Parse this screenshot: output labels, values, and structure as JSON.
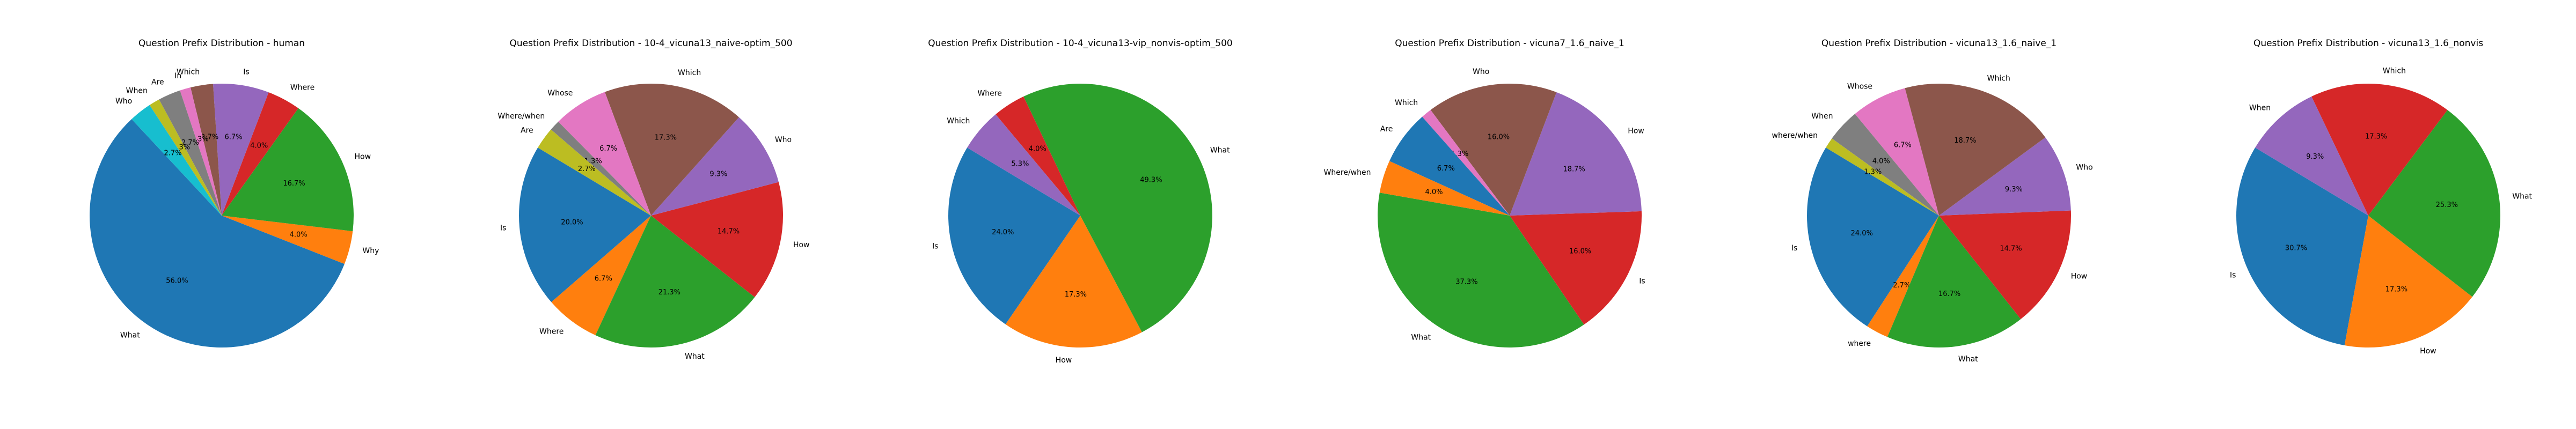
{
  "chart_data": [
    {
      "type": "pie",
      "title": "Question Prefix Distribution - human",
      "start_angle": 133,
      "slices": [
        {
          "label": "What",
          "value": 56.0,
          "pct_label": "56.0%",
          "color": "#1f77b4"
        },
        {
          "label": "Why",
          "value": 4.0,
          "pct_label": "4.0%",
          "color": "#ff7f0e"
        },
        {
          "label": "How",
          "value": 16.7,
          "pct_label": "16.7%",
          "color": "#2ca02c"
        },
        {
          "label": "Where",
          "value": 4.0,
          "pct_label": "4.0%",
          "color": "#d62728"
        },
        {
          "label": "Is",
          "value": 6.7,
          "pct_label": "6.7%",
          "color": "#9467bd"
        },
        {
          "label": "Which",
          "value": 2.7,
          "pct_label": "2.7%",
          "color": "#8c564b"
        },
        {
          "label": "In",
          "value": 1.3,
          "pct_label": "1.3%",
          "color": "#e377c2"
        },
        {
          "label": "Are",
          "value": 2.7,
          "pct_label": "2.7%",
          "color": "#7f7f7f"
        },
        {
          "label": "When",
          "value": 1.3,
          "pct_label": "1.3%",
          "color": "#bcbd22"
        },
        {
          "label": "Who",
          "value": 2.7,
          "pct_label": "2.7%",
          "color": "#17becf"
        }
      ]
    },
    {
      "type": "pie",
      "title": "Question Prefix Distribution - 10-4_vicuna13_naive-optim_500",
      "start_angle": 149,
      "slices": [
        {
          "label": "Is",
          "value": 20.0,
          "pct_label": "20.0%",
          "color": "#1f77b4"
        },
        {
          "label": "Where",
          "value": 6.7,
          "pct_label": "6.7%",
          "color": "#ff7f0e"
        },
        {
          "label": "What",
          "value": 21.3,
          "pct_label": "21.3%",
          "color": "#2ca02c"
        },
        {
          "label": "How",
          "value": 14.7,
          "pct_label": "14.7%",
          "color": "#d62728"
        },
        {
          "label": "Who",
          "value": 9.3,
          "pct_label": "9.3%",
          "color": "#9467bd"
        },
        {
          "label": "Which",
          "value": 17.3,
          "pct_label": "17.3%",
          "color": "#8c564b"
        },
        {
          "label": "Whose",
          "value": 6.7,
          "pct_label": "6.7%",
          "color": "#e377c2"
        },
        {
          "label": "Where/when",
          "value": 1.3,
          "pct_label": "1.3%",
          "color": "#7f7f7f"
        },
        {
          "label": "Are",
          "value": 2.7,
          "pct_label": "2.7%",
          "color": "#bcbd22"
        }
      ]
    },
    {
      "type": "pie",
      "title": "Question Prefix Distribution - 10-4_vicuna13-vip_nonvis-optim_500",
      "start_angle": 149,
      "slices": [
        {
          "label": "Is",
          "value": 24.0,
          "pct_label": "24.0%",
          "color": "#1f77b4"
        },
        {
          "label": "How",
          "value": 17.3,
          "pct_label": "17.3%",
          "color": "#ff7f0e"
        },
        {
          "label": "What",
          "value": 49.3,
          "pct_label": "49.3%",
          "color": "#2ca02c"
        },
        {
          "label": "Where",
          "value": 4.0,
          "pct_label": "4.0%",
          "color": "#d62728"
        },
        {
          "label": "Which",
          "value": 5.3,
          "pct_label": "5.3%",
          "color": "#9467bd"
        }
      ]
    },
    {
      "type": "pie",
      "title": "Question Prefix Distribution - vicuna7_1.6_naive_1",
      "start_angle": 170,
      "slices": [
        {
          "label": "What",
          "value": 37.3,
          "pct_label": "37.3%",
          "color": "#2ca02c"
        },
        {
          "label": "Is",
          "value": 16.0,
          "pct_label": "16.0%",
          "color": "#d62728"
        },
        {
          "label": "How",
          "value": 18.7,
          "pct_label": "18.7%",
          "color": "#9467bd"
        },
        {
          "label": "Who",
          "value": 16.0,
          "pct_label": "16.0%",
          "color": "#8c564b"
        },
        {
          "label": "Which",
          "value": 1.3,
          "pct_label": "1.3%",
          "color": "#e377c2"
        },
        {
          "label": "Are",
          "value": 6.7,
          "pct_label": "6.7%",
          "color": "#1f77b4"
        },
        {
          "label": "Where/when",
          "value": 4.0,
          "pct_label": "4.0%",
          "color": "#ff7f0e"
        }
      ]
    },
    {
      "type": "pie",
      "title": "Question Prefix Distribution - vicuna13_1.6_naive_1",
      "start_angle": 149,
      "slices": [
        {
          "label": "Is",
          "value": 24.0,
          "pct_label": "24.0%",
          "color": "#1f77b4"
        },
        {
          "label": "where",
          "value": 2.7,
          "pct_label": "2.7%",
          "color": "#ff7f0e"
        },
        {
          "label": "What",
          "value": 16.7,
          "pct_label": "16.7%",
          "color": "#2ca02c"
        },
        {
          "label": "How",
          "value": 14.7,
          "pct_label": "14.7%",
          "color": "#d62728"
        },
        {
          "label": "Who",
          "value": 9.3,
          "pct_label": "9.3%",
          "color": "#9467bd"
        },
        {
          "label": "Which",
          "value": 18.7,
          "pct_label": "18.7%",
          "color": "#8c564b"
        },
        {
          "label": "Whose",
          "value": 6.7,
          "pct_label": "6.7%",
          "color": "#e377c2"
        },
        {
          "label": "When",
          "value": 4.0,
          "pct_label": "4.0%",
          "color": "#7f7f7f"
        },
        {
          "label": "where/when",
          "value": 1.3,
          "pct_label": "1.3%",
          "color": "#bcbd22"
        }
      ]
    },
    {
      "type": "pie",
      "title": "Question Prefix Distribution - vicuna13_1.6_nonvis",
      "start_angle": 149,
      "slices": [
        {
          "label": "Is",
          "value": 30.7,
          "pct_label": "30.7%",
          "color": "#1f77b4"
        },
        {
          "label": "How",
          "value": 17.3,
          "pct_label": "17.3%",
          "color": "#ff7f0e"
        },
        {
          "label": "What",
          "value": 25.3,
          "pct_label": "25.3%",
          "color": "#2ca02c"
        },
        {
          "label": "Which",
          "value": 17.3,
          "pct_label": "17.3%",
          "color": "#d62728"
        },
        {
          "label": "When",
          "value": 9.3,
          "pct_label": "9.3%",
          "color": "#9467bd"
        }
      ]
    }
  ]
}
